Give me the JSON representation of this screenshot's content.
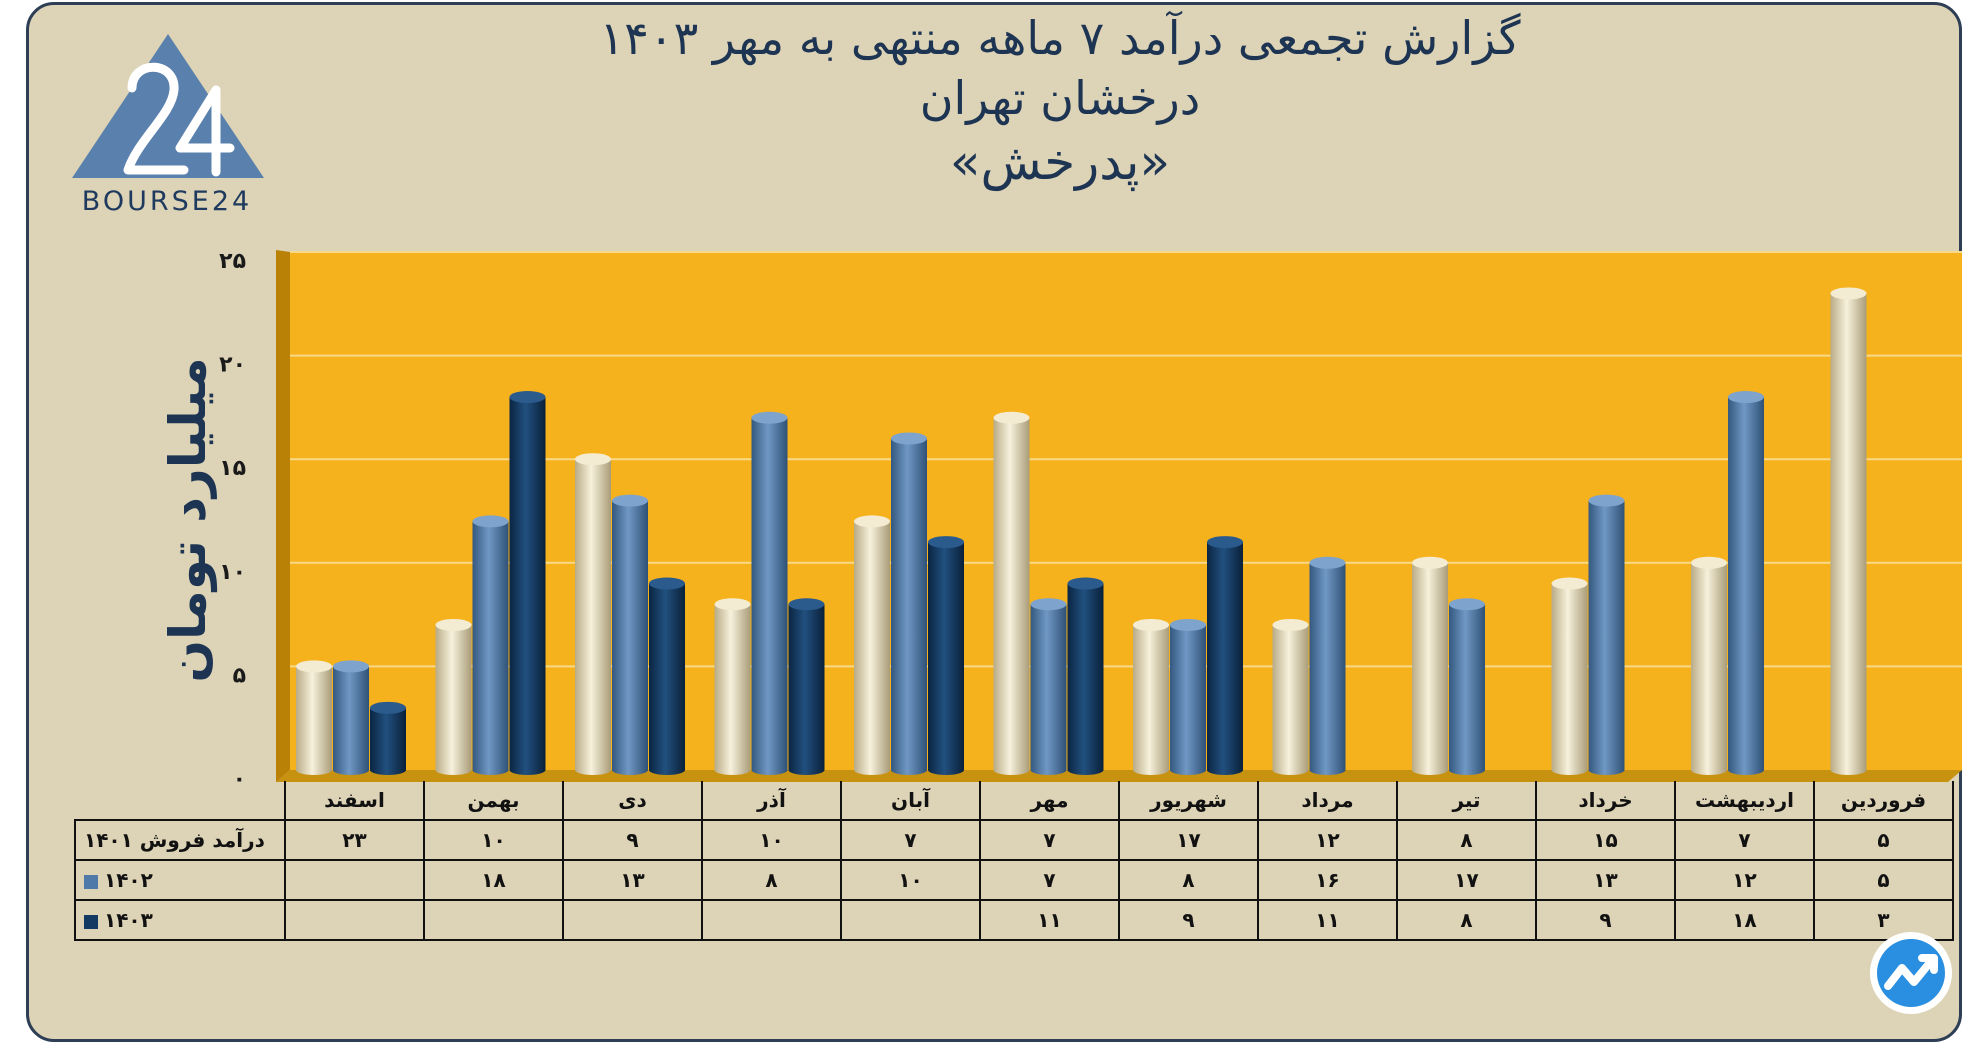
{
  "title": {
    "line1": "گزارش تجمعی درآمد ۷ ماهه منتهی به مهر ۱۴۰۳",
    "line2": "درخشان تهران",
    "line3": "«پدرخش»"
  },
  "logo_text": "BOURSE24",
  "colors": {
    "background": "#ddd3b6",
    "plot": "#f6b21c",
    "series_1401": "#e9dfc4",
    "series_1402": "#4f79a8",
    "series_1403": "#123a63",
    "title": "#1d3553"
  },
  "chart_data": {
    "type": "bar",
    "ylabel": "میلیارد تومان",
    "xlabel": "",
    "ylim": [
      0,
      25
    ],
    "yticks": [
      "۰",
      "۵",
      "۱۰",
      "۱۵",
      "۲۰",
      "۲۵"
    ],
    "ytick_values": [
      0,
      5,
      10,
      15,
      20,
      25
    ],
    "grid": true,
    "categories": [
      "فروردین",
      "اردیبهشت",
      "خرداد",
      "تیر",
      "مرداد",
      "شهریور",
      "مهر",
      "آبان",
      "آذر",
      "دی",
      "بهمن",
      "اسفند"
    ],
    "series": [
      {
        "name": "درآمد فروش ۱۴۰۱",
        "values": [
          5,
          7,
          15,
          8,
          12,
          17,
          7,
          7,
          10,
          9,
          10,
          23
        ],
        "labels": [
          "۵",
          "۷",
          "۱۵",
          "۸",
          "۱۲",
          "۱۷",
          "۷",
          "۷",
          "۱۰",
          "۹",
          "۱۰",
          "۲۳"
        ]
      },
      {
        "name": "۱۴۰۲",
        "values": [
          5,
          12,
          13,
          17,
          16,
          8,
          7,
          10,
          8,
          13,
          18,
          null
        ],
        "labels": [
          "۵",
          "۱۲",
          "۱۳",
          "۱۷",
          "۱۶",
          "۸",
          "۷",
          "۱۰",
          "۸",
          "۱۳",
          "۱۸",
          ""
        ]
      },
      {
        "name": "۱۴۰۳",
        "values": [
          3,
          18,
          9,
          8,
          11,
          9,
          11,
          null,
          null,
          null,
          null,
          null
        ],
        "labels": [
          "۳",
          "۱۸",
          "۹",
          "۸",
          "۱۱",
          "۹",
          "۱۱",
          "",
          "",
          "",
          "",
          ""
        ]
      }
    ]
  }
}
